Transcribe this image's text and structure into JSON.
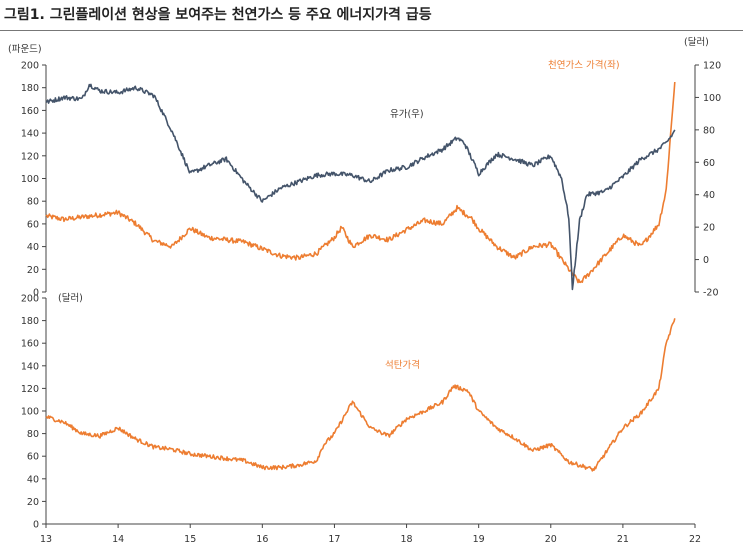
{
  "figure_title": "그림1. 그린플레이션 현상을 보여주는 천연가스 등 주요 에너지가격 급등",
  "chart_data": [
    {
      "type": "line",
      "panel": "top",
      "y_left_unit": "(파운드)",
      "y_right_unit": "(달러)",
      "y_left_ticks": [
        "0",
        "20",
        "40",
        "60",
        "80",
        "100",
        "120",
        "140",
        "160",
        "180",
        "200"
      ],
      "y_right_ticks": [
        "-20",
        "0",
        "20",
        "40",
        "60",
        "80",
        "100",
        "120"
      ],
      "ylim_left": [
        0,
        200
      ],
      "ylim_right": [
        -20,
        120
      ],
      "x_range": [
        2013,
        2022
      ],
      "grid": false,
      "series": [
        {
          "name": "천연가스 가격(좌)",
          "axis": "left",
          "color": "#ED7D31",
          "x": [
            2013.0,
            2013.25,
            2013.5,
            2013.75,
            2014.0,
            2014.25,
            2014.5,
            2014.75,
            2015.0,
            2015.25,
            2015.5,
            2015.75,
            2016.0,
            2016.25,
            2016.5,
            2016.75,
            2017.0,
            2017.1,
            2017.25,
            2017.5,
            2017.75,
            2018.0,
            2018.25,
            2018.5,
            2018.7,
            2018.9,
            2019.0,
            2019.25,
            2019.5,
            2019.75,
            2020.0,
            2020.25,
            2020.4,
            2020.5,
            2020.75,
            2021.0,
            2021.25,
            2021.5,
            2021.6,
            2021.7,
            2021.72
          ],
          "y": [
            67,
            64,
            66,
            68,
            70,
            60,
            45,
            40,
            56,
            48,
            46,
            44,
            38,
            32,
            30,
            34,
            48,
            57,
            40,
            50,
            46,
            55,
            63,
            60,
            74,
            65,
            56,
            40,
            30,
            40,
            42,
            20,
            8,
            14,
            32,
            50,
            40,
            60,
            90,
            170,
            185
          ]
        },
        {
          "name": "유가(우)",
          "axis": "right",
          "color": "#44546A",
          "x": [
            2013.0,
            2013.25,
            2013.5,
            2013.6,
            2013.75,
            2014.0,
            2014.25,
            2014.5,
            2014.75,
            2015.0,
            2015.25,
            2015.5,
            2015.75,
            2016.0,
            2016.25,
            2016.5,
            2016.75,
            2017.0,
            2017.25,
            2017.5,
            2017.75,
            2018.0,
            2018.25,
            2018.5,
            2018.7,
            2018.8,
            2018.95,
            2019.0,
            2019.25,
            2019.5,
            2019.75,
            2020.0,
            2020.15,
            2020.25,
            2020.3,
            2020.4,
            2020.5,
            2020.75,
            2021.0,
            2021.25,
            2021.5,
            2021.6,
            2021.7,
            2021.72
          ],
          "y": [
            97,
            100,
            99,
            108,
            104,
            103,
            106,
            101,
            79,
            53,
            58,
            62,
            48,
            36,
            44,
            48,
            52,
            53,
            52,
            48,
            55,
            57,
            63,
            68,
            75,
            72,
            58,
            53,
            65,
            62,
            58,
            64,
            50,
            26,
            -18,
            24,
            40,
            42,
            51,
            62,
            68,
            72,
            78,
            80
          ]
        }
      ],
      "annotations": [
        "천연가스 가격(좌)",
        "유가(우)"
      ]
    },
    {
      "type": "line",
      "panel": "bottom",
      "y_unit": "(달러)",
      "y_ticks": [
        "0",
        "20",
        "40",
        "60",
        "80",
        "100",
        "120",
        "140",
        "160",
        "180",
        "200"
      ],
      "ylim": [
        0,
        200
      ],
      "x_ticks": [
        "13",
        "14",
        "15",
        "16",
        "17",
        "18",
        "19",
        "20",
        "21",
        "22"
      ],
      "x_range": [
        2013,
        2022
      ],
      "grid": false,
      "series": [
        {
          "name": "석탄가격",
          "color": "#ED7D31",
          "x": [
            2013.0,
            2013.25,
            2013.5,
            2013.75,
            2014.0,
            2014.25,
            2014.5,
            2014.75,
            2015.0,
            2015.25,
            2015.5,
            2015.75,
            2016.0,
            2016.25,
            2016.5,
            2016.75,
            2016.85,
            2017.0,
            2017.25,
            2017.5,
            2017.75,
            2018.0,
            2018.25,
            2018.5,
            2018.65,
            2018.85,
            2019.0,
            2019.25,
            2019.5,
            2019.75,
            2020.0,
            2020.25,
            2020.4,
            2020.6,
            2020.75,
            2021.0,
            2021.25,
            2021.5,
            2021.6,
            2021.7,
            2021.72
          ],
          "y": [
            95,
            90,
            80,
            78,
            85,
            75,
            68,
            66,
            62,
            60,
            58,
            56,
            50,
            50,
            52,
            56,
            70,
            80,
            108,
            85,
            78,
            93,
            100,
            108,
            122,
            118,
            100,
            85,
            76,
            65,
            70,
            55,
            52,
            48,
            62,
            85,
            98,
            120,
            160,
            178,
            182
          ]
        }
      ],
      "annotations": [
        "석탄가격"
      ]
    }
  ]
}
